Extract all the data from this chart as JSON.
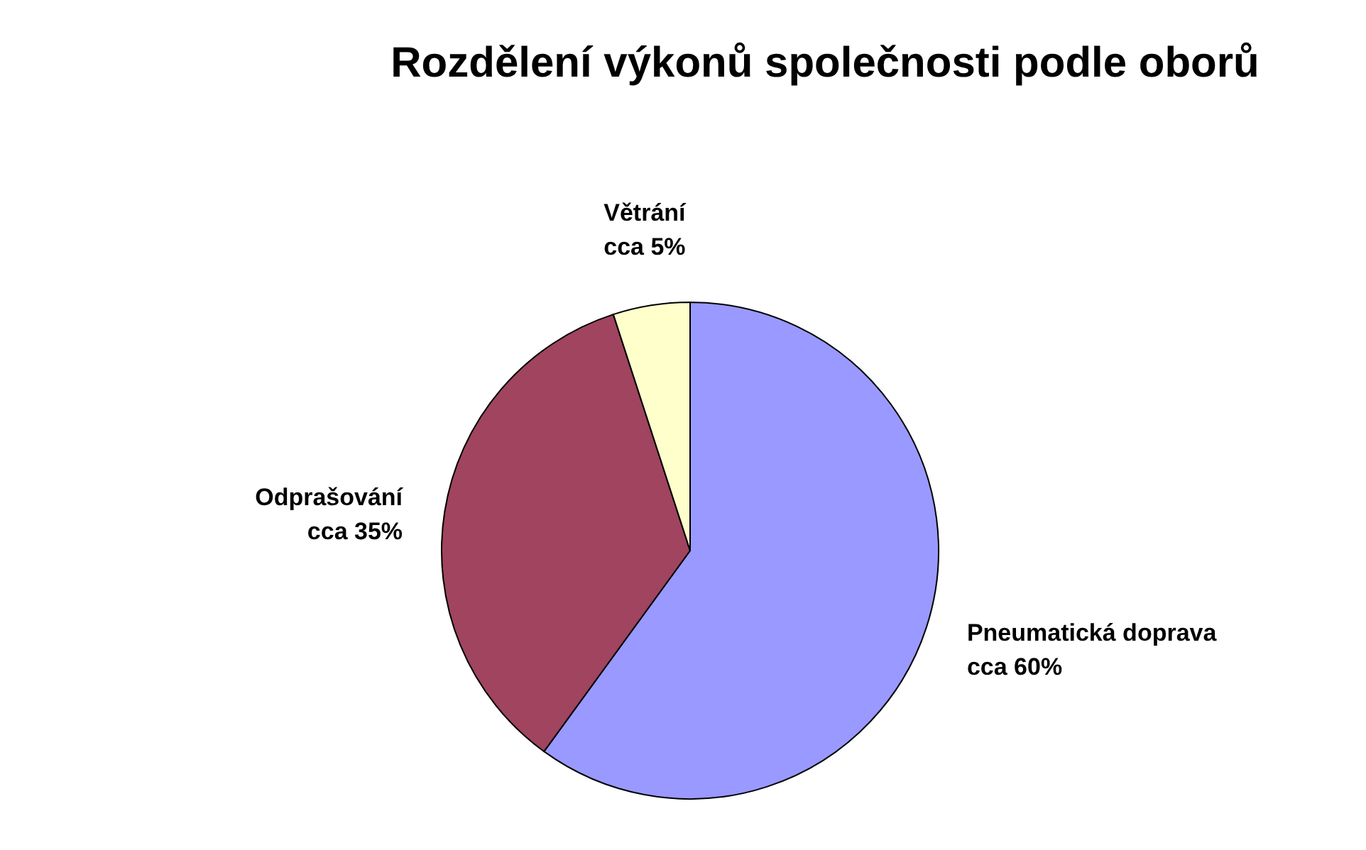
{
  "chart_data": {
    "type": "pie",
    "title": "Rozdělení výkonů společnosti podle oborů",
    "categories": [
      "Pneumatická doprava",
      "Odprašování",
      "Větrání"
    ],
    "values": [
      60,
      35,
      5
    ],
    "value_labels": [
      "cca 60%",
      "cca 35%",
      "cca 5%"
    ],
    "colors": [
      "#9999ff",
      "#a0445f",
      "#ffffcc"
    ]
  }
}
